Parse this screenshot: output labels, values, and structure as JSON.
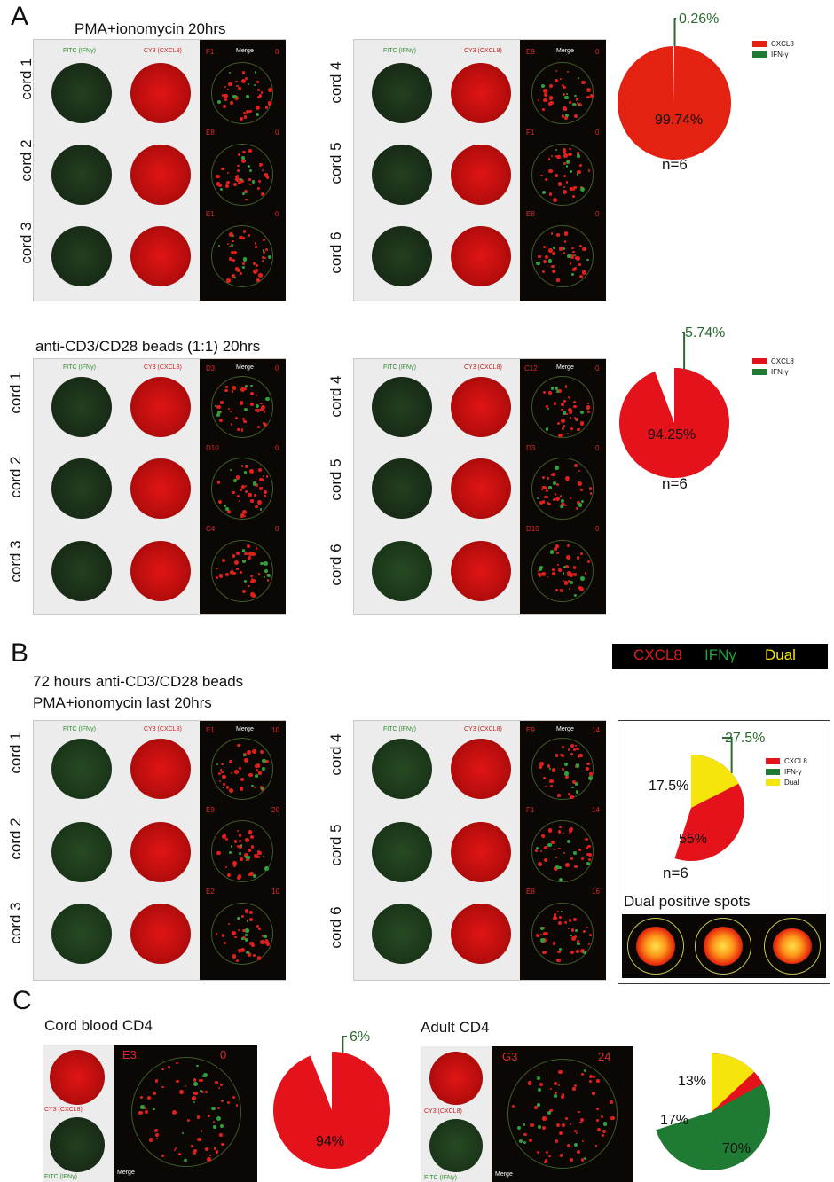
{
  "panels": {
    "a": "A",
    "b": "B",
    "c": "C"
  },
  "A": {
    "top": {
      "condition": "PMA+ionomycin 20hrs",
      "left": {
        "headers": {
          "fitc": "FITC (IFNγ)",
          "cy3": "CY3 (CXCL8)",
          "merge": "Merge"
        },
        "rows": [
          {
            "cord": "cord 1",
            "well": "F1",
            "count": "0"
          },
          {
            "cord": "cord 2",
            "well": "E8",
            "count": "0"
          },
          {
            "cord": "cord 3",
            "well": "E1",
            "count": "0"
          }
        ]
      },
      "right": {
        "headers": {
          "fitc": "FITC (IFNγ)",
          "cy3": "CY3 (CXCL8)",
          "merge": "Merge"
        },
        "rows": [
          {
            "cord": "cord 4",
            "well": "E9",
            "count": "0"
          },
          {
            "cord": "cord 5",
            "well": "F1",
            "count": "0"
          },
          {
            "cord": "cord 6",
            "well": "E8",
            "count": "0"
          }
        ]
      },
      "pie": {
        "slices": [
          {
            "label": "CXCL8",
            "value": 99.74,
            "text": "99.74%",
            "color": "#e32212"
          },
          {
            "label": "IFN-γ",
            "value": 0.26,
            "text": "0.26%",
            "color": "#1f7a33"
          }
        ],
        "n": "n=6"
      },
      "legend": [
        "CXCL8",
        "IFN-γ"
      ]
    },
    "bottom": {
      "condition": "anti-CD3/CD28 beads (1:1) 20hrs",
      "left": {
        "headers": {
          "fitc": "FITC (IFNγ)",
          "cy3": "CY3 (CXCL8)",
          "merge": "Merge"
        },
        "rows": [
          {
            "cord": "cord 1",
            "well": "D3",
            "count": "0"
          },
          {
            "cord": "cord 2",
            "well": "D10",
            "count": "0"
          },
          {
            "cord": "cord 3",
            "well": "C4",
            "count": "0"
          }
        ]
      },
      "right": {
        "headers": {
          "fitc": "FITC (IFNγ)",
          "cy3": "CY3 (CXCL8)",
          "merge": "Merge"
        },
        "rows": [
          {
            "cord": "cord 4",
            "well": "C12",
            "count": "0"
          },
          {
            "cord": "cord 5",
            "well": "D3",
            "count": "0"
          },
          {
            "cord": "cord 6",
            "well": "D10",
            "count": "0"
          }
        ]
      },
      "pie": {
        "slices": [
          {
            "label": "CXCL8",
            "value": 94.25,
            "text": "94.25%",
            "color": "#e3121b"
          },
          {
            "label": "IFN-γ",
            "value": 5.74,
            "text": "5.74%",
            "color": "#1f7a33"
          }
        ],
        "n": "n=6"
      },
      "legend": [
        "CXCL8",
        "IFN-γ"
      ]
    }
  },
  "B": {
    "condition_line1": "72 hours anti-CD3/CD28 beads",
    "condition_line2": "PMA+ionomycin last 20hrs",
    "key": {
      "cxcl8": "CXCL8",
      "ifn": "IFNγ",
      "dual": "Dual"
    },
    "left": {
      "headers": {
        "fitc": "FITC (IFNγ)",
        "cy3": "CY3 (CXCL8)",
        "merge": "Merge"
      },
      "rows": [
        {
          "cord": "cord 1",
          "well": "E1",
          "count": "10"
        },
        {
          "cord": "cord 2",
          "well": "E9",
          "count": "20"
        },
        {
          "cord": "cord 3",
          "well": "E2",
          "count": "10"
        }
      ]
    },
    "right": {
      "headers": {
        "fitc": "FITC (IFNγ)",
        "cy3": "CY3 (CXCL8)",
        "merge": "Merge"
      },
      "rows": [
        {
          "cord": "cord 4",
          "well": "E9",
          "count": "14"
        },
        {
          "cord": "cord 5",
          "well": "F1",
          "count": "14"
        },
        {
          "cord": "cord 6",
          "well": "E8",
          "count": "16"
        }
      ]
    },
    "pie": {
      "slices": [
        {
          "label": "IFN-γ",
          "value": 27.5,
          "text": "27.5%",
          "color": "#1f7a33"
        },
        {
          "label": "CXCL8",
          "value": 55,
          "text": "55%",
          "color": "#e3121b"
        },
        {
          "label": "Dual",
          "value": 17.5,
          "text": "17.5%",
          "color": "#f5e50a"
        }
      ],
      "n": "n=6"
    },
    "legend": [
      "CXCL8",
      "IFN-γ",
      "Dual"
    ],
    "dual_title": "Dual positive spots"
  },
  "C": {
    "cord": {
      "title": "Cord blood CD4",
      "cy3": "CY3 (CXCL8)",
      "fitc": "FITC (IFNγ)",
      "merge": "Merge",
      "well": "E3",
      "count": "0",
      "pie": {
        "slices": [
          {
            "label": "IFN-γ",
            "value": 6,
            "text": "6%",
            "color": "#1f7a33"
          },
          {
            "label": "CXCL8",
            "value": 94,
            "text": "94%",
            "color": "#e3121b"
          }
        ]
      }
    },
    "adult": {
      "title": "Adult CD4",
      "cy3": "CY3 (CXCL8)",
      "fitc": "FITC (IFNγ)",
      "merge": "Merge",
      "well": "G3",
      "count": "24",
      "pie": {
        "slices": [
          {
            "label": "IFN-γ",
            "value": 70,
            "text": "70%",
            "color": "#1f7a33"
          },
          {
            "label": "CXCL8",
            "value": 17,
            "text": "17%",
            "color": "#e3121b"
          },
          {
            "label": "Dual",
            "value": 13,
            "text": "13%",
            "color": "#f5e50a"
          }
        ]
      }
    }
  }
}
